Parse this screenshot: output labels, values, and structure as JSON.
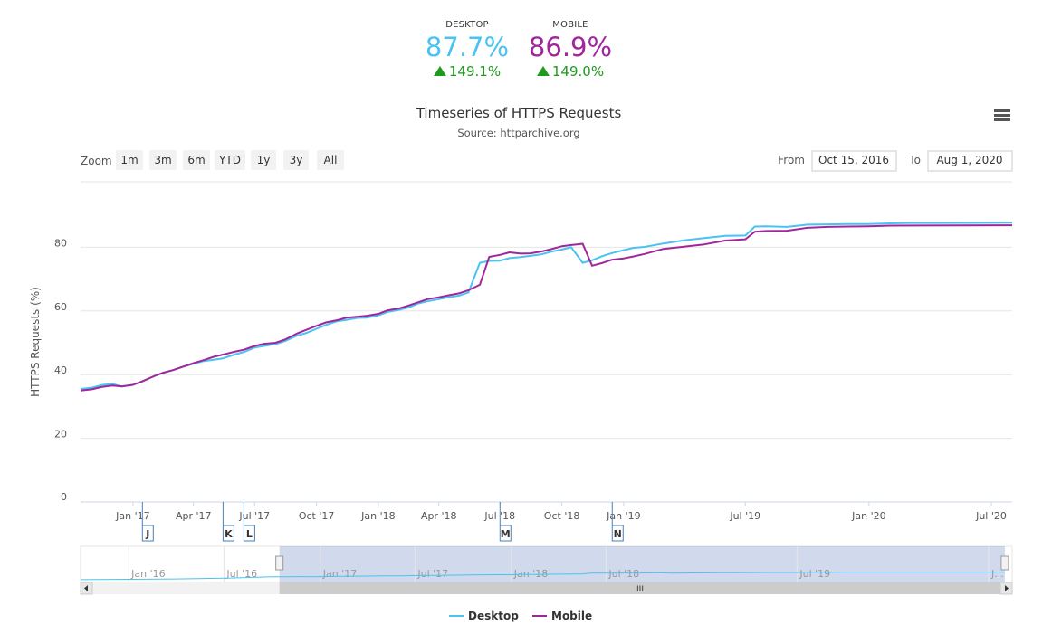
{
  "summary": {
    "desktop": {
      "label": "DESKTOP",
      "value": "87.7%",
      "change": "149.1%",
      "color": "#4ac2f2"
    },
    "mobile": {
      "label": "MOBILE",
      "value": "86.9%",
      "change": "149.0%",
      "color": "#a1269c"
    }
  },
  "controls": {
    "zoom_label": "Zoom",
    "zoom_buttons": [
      "1m",
      "3m",
      "6m",
      "YTD",
      "1y",
      "3y",
      "All"
    ],
    "from_label": "From",
    "from_value": "Oct 15, 2016",
    "to_label": "To",
    "to_value": "Aug 1, 2020",
    "menu_icon": "hamburger-menu-icon"
  },
  "chart_data": {
    "type": "line",
    "title": "Timeseries of HTTPS Requests",
    "subtitle": "Source: httparchive.org",
    "ylabel": "HTTPS Requests (%)",
    "ylim": [
      0,
      100
    ],
    "yticks": [
      0,
      20,
      40,
      60,
      80
    ],
    "xlim": [
      "2016-10-15",
      "2020-08-01"
    ],
    "xticks": [
      {
        "date": "2017-01-01",
        "label": "Jan '17"
      },
      {
        "date": "2017-04-01",
        "label": "Apr '17"
      },
      {
        "date": "2017-07-01",
        "label": "Jul '17"
      },
      {
        "date": "2017-10-01",
        "label": "Oct '17"
      },
      {
        "date": "2018-01-01",
        "label": "Jan '18"
      },
      {
        "date": "2018-04-01",
        "label": "Apr '18"
      },
      {
        "date": "2018-07-01",
        "label": "Jul '18"
      },
      {
        "date": "2018-10-01",
        "label": "Oct '18"
      },
      {
        "date": "2019-01-01",
        "label": "Jan '19"
      },
      {
        "date": "2019-07-01",
        "label": "Jul '19"
      },
      {
        "date": "2020-01-01",
        "label": "Jan '20"
      },
      {
        "date": "2020-07-01",
        "label": "Jul '20"
      }
    ],
    "grid": true,
    "legend": "bottom-center",
    "series": [
      {
        "name": "Desktop",
        "color": "#4ac2f2",
        "points": [
          [
            "2016-10-15",
            35.5
          ],
          [
            "2016-11-01",
            35.9
          ],
          [
            "2016-11-15",
            36.7
          ],
          [
            "2016-12-01",
            37.1
          ],
          [
            "2016-12-15",
            36.3
          ],
          [
            "2017-01-01",
            36.8
          ],
          [
            "2017-01-15",
            37.9
          ],
          [
            "2017-02-01",
            39.5
          ],
          [
            "2017-02-15",
            40.6
          ],
          [
            "2017-03-01",
            41.4
          ],
          [
            "2017-03-15",
            42.4
          ],
          [
            "2017-04-01",
            43.4
          ],
          [
            "2017-04-15",
            44.2
          ],
          [
            "2017-05-01",
            44.7
          ],
          [
            "2017-05-15",
            45.1
          ],
          [
            "2017-06-01",
            46.3
          ],
          [
            "2017-06-15",
            47.1
          ],
          [
            "2017-07-01",
            48.5
          ],
          [
            "2017-07-15",
            49.0
          ],
          [
            "2017-08-01",
            49.6
          ],
          [
            "2017-08-15",
            50.5
          ],
          [
            "2017-09-01",
            52.2
          ],
          [
            "2017-09-15",
            53.0
          ],
          [
            "2017-10-01",
            54.4
          ],
          [
            "2017-10-15",
            55.6
          ],
          [
            "2017-11-01",
            56.8
          ],
          [
            "2017-11-15",
            57.2
          ],
          [
            "2017-12-01",
            57.8
          ],
          [
            "2017-12-15",
            57.9
          ],
          [
            "2018-01-01",
            58.6
          ],
          [
            "2018-01-15",
            59.7
          ],
          [
            "2018-02-01",
            60.3
          ],
          [
            "2018-02-15",
            61.1
          ],
          [
            "2018-03-01",
            62.3
          ],
          [
            "2018-03-15",
            63.0
          ],
          [
            "2018-04-01",
            63.7
          ],
          [
            "2018-04-15",
            64.3
          ],
          [
            "2018-05-01",
            64.8
          ],
          [
            "2018-05-15",
            65.8
          ],
          [
            "2018-06-01",
            75.1
          ],
          [
            "2018-06-15",
            75.7
          ],
          [
            "2018-07-01",
            75.8
          ],
          [
            "2018-07-15",
            76.6
          ],
          [
            "2018-08-01",
            76.9
          ],
          [
            "2018-08-15",
            77.3
          ],
          [
            "2018-09-01",
            77.8
          ],
          [
            "2018-09-15",
            78.6
          ],
          [
            "2018-10-01",
            79.3
          ],
          [
            "2018-10-15",
            80.0
          ],
          [
            "2018-11-01",
            75.1
          ],
          [
            "2018-11-15",
            75.9
          ],
          [
            "2018-12-01",
            77.3
          ],
          [
            "2018-12-15",
            78.2
          ],
          [
            "2019-01-01",
            79.1
          ],
          [
            "2019-01-15",
            79.8
          ],
          [
            "2019-02-01",
            80.1
          ],
          [
            "2019-03-01",
            81.2
          ],
          [
            "2019-04-01",
            82.2
          ],
          [
            "2019-05-01",
            82.9
          ],
          [
            "2019-06-01",
            83.6
          ],
          [
            "2019-07-01",
            83.7
          ],
          [
            "2019-07-15",
            86.5
          ],
          [
            "2019-08-01",
            86.6
          ],
          [
            "2019-09-01",
            86.4
          ],
          [
            "2019-10-01",
            87.1
          ],
          [
            "2019-11-01",
            87.2
          ],
          [
            "2019-12-01",
            87.3
          ],
          [
            "2020-01-01",
            87.3
          ],
          [
            "2020-02-01",
            87.5
          ],
          [
            "2020-03-01",
            87.6
          ],
          [
            "2020-04-01",
            87.6
          ],
          [
            "2020-08-01",
            87.7
          ]
        ]
      },
      {
        "name": "Mobile",
        "color": "#a1269c",
        "points": [
          [
            "2016-10-15",
            35.0
          ],
          [
            "2016-11-01",
            35.4
          ],
          [
            "2016-11-15",
            36.1
          ],
          [
            "2016-12-01",
            36.6
          ],
          [
            "2016-12-15",
            36.3
          ],
          [
            "2017-01-01",
            36.8
          ],
          [
            "2017-01-15",
            37.9
          ],
          [
            "2017-02-01",
            39.5
          ],
          [
            "2017-02-15",
            40.6
          ],
          [
            "2017-03-01",
            41.4
          ],
          [
            "2017-03-15",
            42.4
          ],
          [
            "2017-04-01",
            43.6
          ],
          [
            "2017-04-15",
            44.5
          ],
          [
            "2017-05-01",
            45.6
          ],
          [
            "2017-05-15",
            46.3
          ],
          [
            "2017-06-01",
            47.2
          ],
          [
            "2017-06-15",
            47.8
          ],
          [
            "2017-07-01",
            49.0
          ],
          [
            "2017-07-15",
            49.7
          ],
          [
            "2017-08-01",
            50.0
          ],
          [
            "2017-08-15",
            51.0
          ],
          [
            "2017-09-01",
            52.8
          ],
          [
            "2017-09-15",
            54.0
          ],
          [
            "2017-10-01",
            55.3
          ],
          [
            "2017-10-15",
            56.4
          ],
          [
            "2017-11-01",
            57.1
          ],
          [
            "2017-11-15",
            57.9
          ],
          [
            "2017-12-01",
            58.2
          ],
          [
            "2017-12-15",
            58.5
          ],
          [
            "2018-01-01",
            59.1
          ],
          [
            "2018-01-15",
            60.2
          ],
          [
            "2018-02-01",
            60.8
          ],
          [
            "2018-02-15",
            61.7
          ],
          [
            "2018-03-01",
            62.7
          ],
          [
            "2018-03-15",
            63.7
          ],
          [
            "2018-04-01",
            64.3
          ],
          [
            "2018-04-15",
            64.9
          ],
          [
            "2018-05-01",
            65.5
          ],
          [
            "2018-05-15",
            66.5
          ],
          [
            "2018-06-01",
            68.2
          ],
          [
            "2018-06-15",
            77.0
          ],
          [
            "2018-07-01",
            77.6
          ],
          [
            "2018-07-15",
            78.4
          ],
          [
            "2018-08-01",
            78.0
          ],
          [
            "2018-08-15",
            78.1
          ],
          [
            "2018-09-01",
            78.7
          ],
          [
            "2018-09-15",
            79.4
          ],
          [
            "2018-10-01",
            80.3
          ],
          [
            "2018-10-15",
            80.7
          ],
          [
            "2018-11-01",
            81.1
          ],
          [
            "2018-11-15",
            74.2
          ],
          [
            "2018-12-01",
            75.1
          ],
          [
            "2018-12-15",
            76.1
          ],
          [
            "2019-01-01",
            76.5
          ],
          [
            "2019-01-15",
            77.1
          ],
          [
            "2019-02-01",
            77.9
          ],
          [
            "2019-03-01",
            79.5
          ],
          [
            "2019-04-01",
            80.2
          ],
          [
            "2019-05-01",
            80.9
          ],
          [
            "2019-06-01",
            82.1
          ],
          [
            "2019-07-01",
            82.5
          ],
          [
            "2019-07-15",
            84.9
          ],
          [
            "2019-08-01",
            85.1
          ],
          [
            "2019-09-01",
            85.2
          ],
          [
            "2019-10-01",
            86.1
          ],
          [
            "2019-11-01",
            86.4
          ],
          [
            "2019-12-01",
            86.5
          ],
          [
            "2020-01-01",
            86.6
          ],
          [
            "2020-02-01",
            86.8
          ],
          [
            "2020-08-01",
            86.9
          ]
        ]
      }
    ],
    "flags": [
      {
        "date": "2017-01-15",
        "label": "J"
      },
      {
        "date": "2017-05-15",
        "label": "K"
      },
      {
        "date": "2017-06-15",
        "label": "L"
      },
      {
        "date": "2018-07-01",
        "label": "M"
      },
      {
        "date": "2018-12-15",
        "label": "N"
      }
    ],
    "navigator": {
      "xlim": [
        "2015-10-01",
        "2020-08-15"
      ],
      "labels": [
        {
          "date": "2016-01-01",
          "label": "Jan '16"
        },
        {
          "date": "2016-07-01",
          "label": "Jul '16"
        },
        {
          "date": "2017-01-01",
          "label": "Jan '17"
        },
        {
          "date": "2017-07-01",
          "label": "Jul '17"
        },
        {
          "date": "2018-01-01",
          "label": "Jan '18"
        },
        {
          "date": "2018-07-01",
          "label": "Jul '18"
        },
        {
          "date": "2019-07-01",
          "label": "Jul '19"
        },
        {
          "date": "2020-07-01",
          "label": "J..."
        }
      ],
      "range": [
        "2016-10-15",
        "2020-08-01"
      ]
    }
  }
}
